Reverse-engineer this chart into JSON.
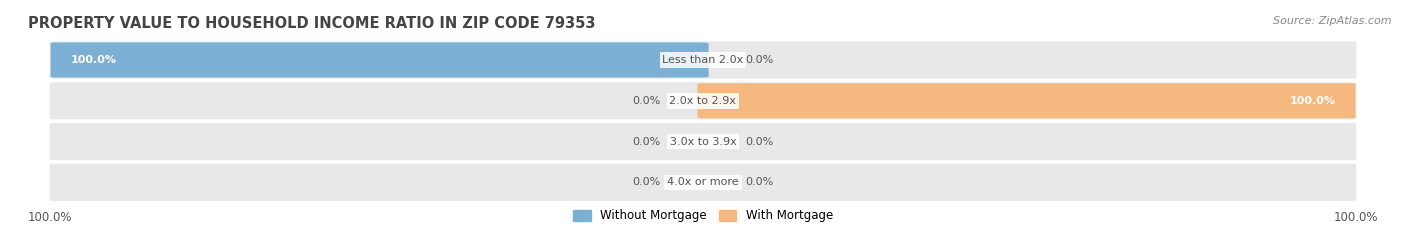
{
  "title": "PROPERTY VALUE TO HOUSEHOLD INCOME RATIO IN ZIP CODE 79353",
  "source": "Source: ZipAtlas.com",
  "categories": [
    "Less than 2.0x",
    "2.0x to 2.9x",
    "3.0x to 3.9x",
    "4.0x or more"
  ],
  "without_mortgage": [
    100.0,
    0.0,
    0.0,
    0.0
  ],
  "with_mortgage": [
    0.0,
    100.0,
    0.0,
    0.0
  ],
  "bar_color_without": "#7bafd4",
  "bar_color_with": "#f5b97f",
  "bg_color_bar": "#f0f0f0",
  "bar_bg_color": "#e8e8e8",
  "title_color": "#444444",
  "label_color": "#555555",
  "source_color": "#888888",
  "legend_without": "Without Mortgage",
  "legend_with": "With Mortgage",
  "bottom_left_label": "100.0%",
  "bottom_right_label": "100.0%"
}
